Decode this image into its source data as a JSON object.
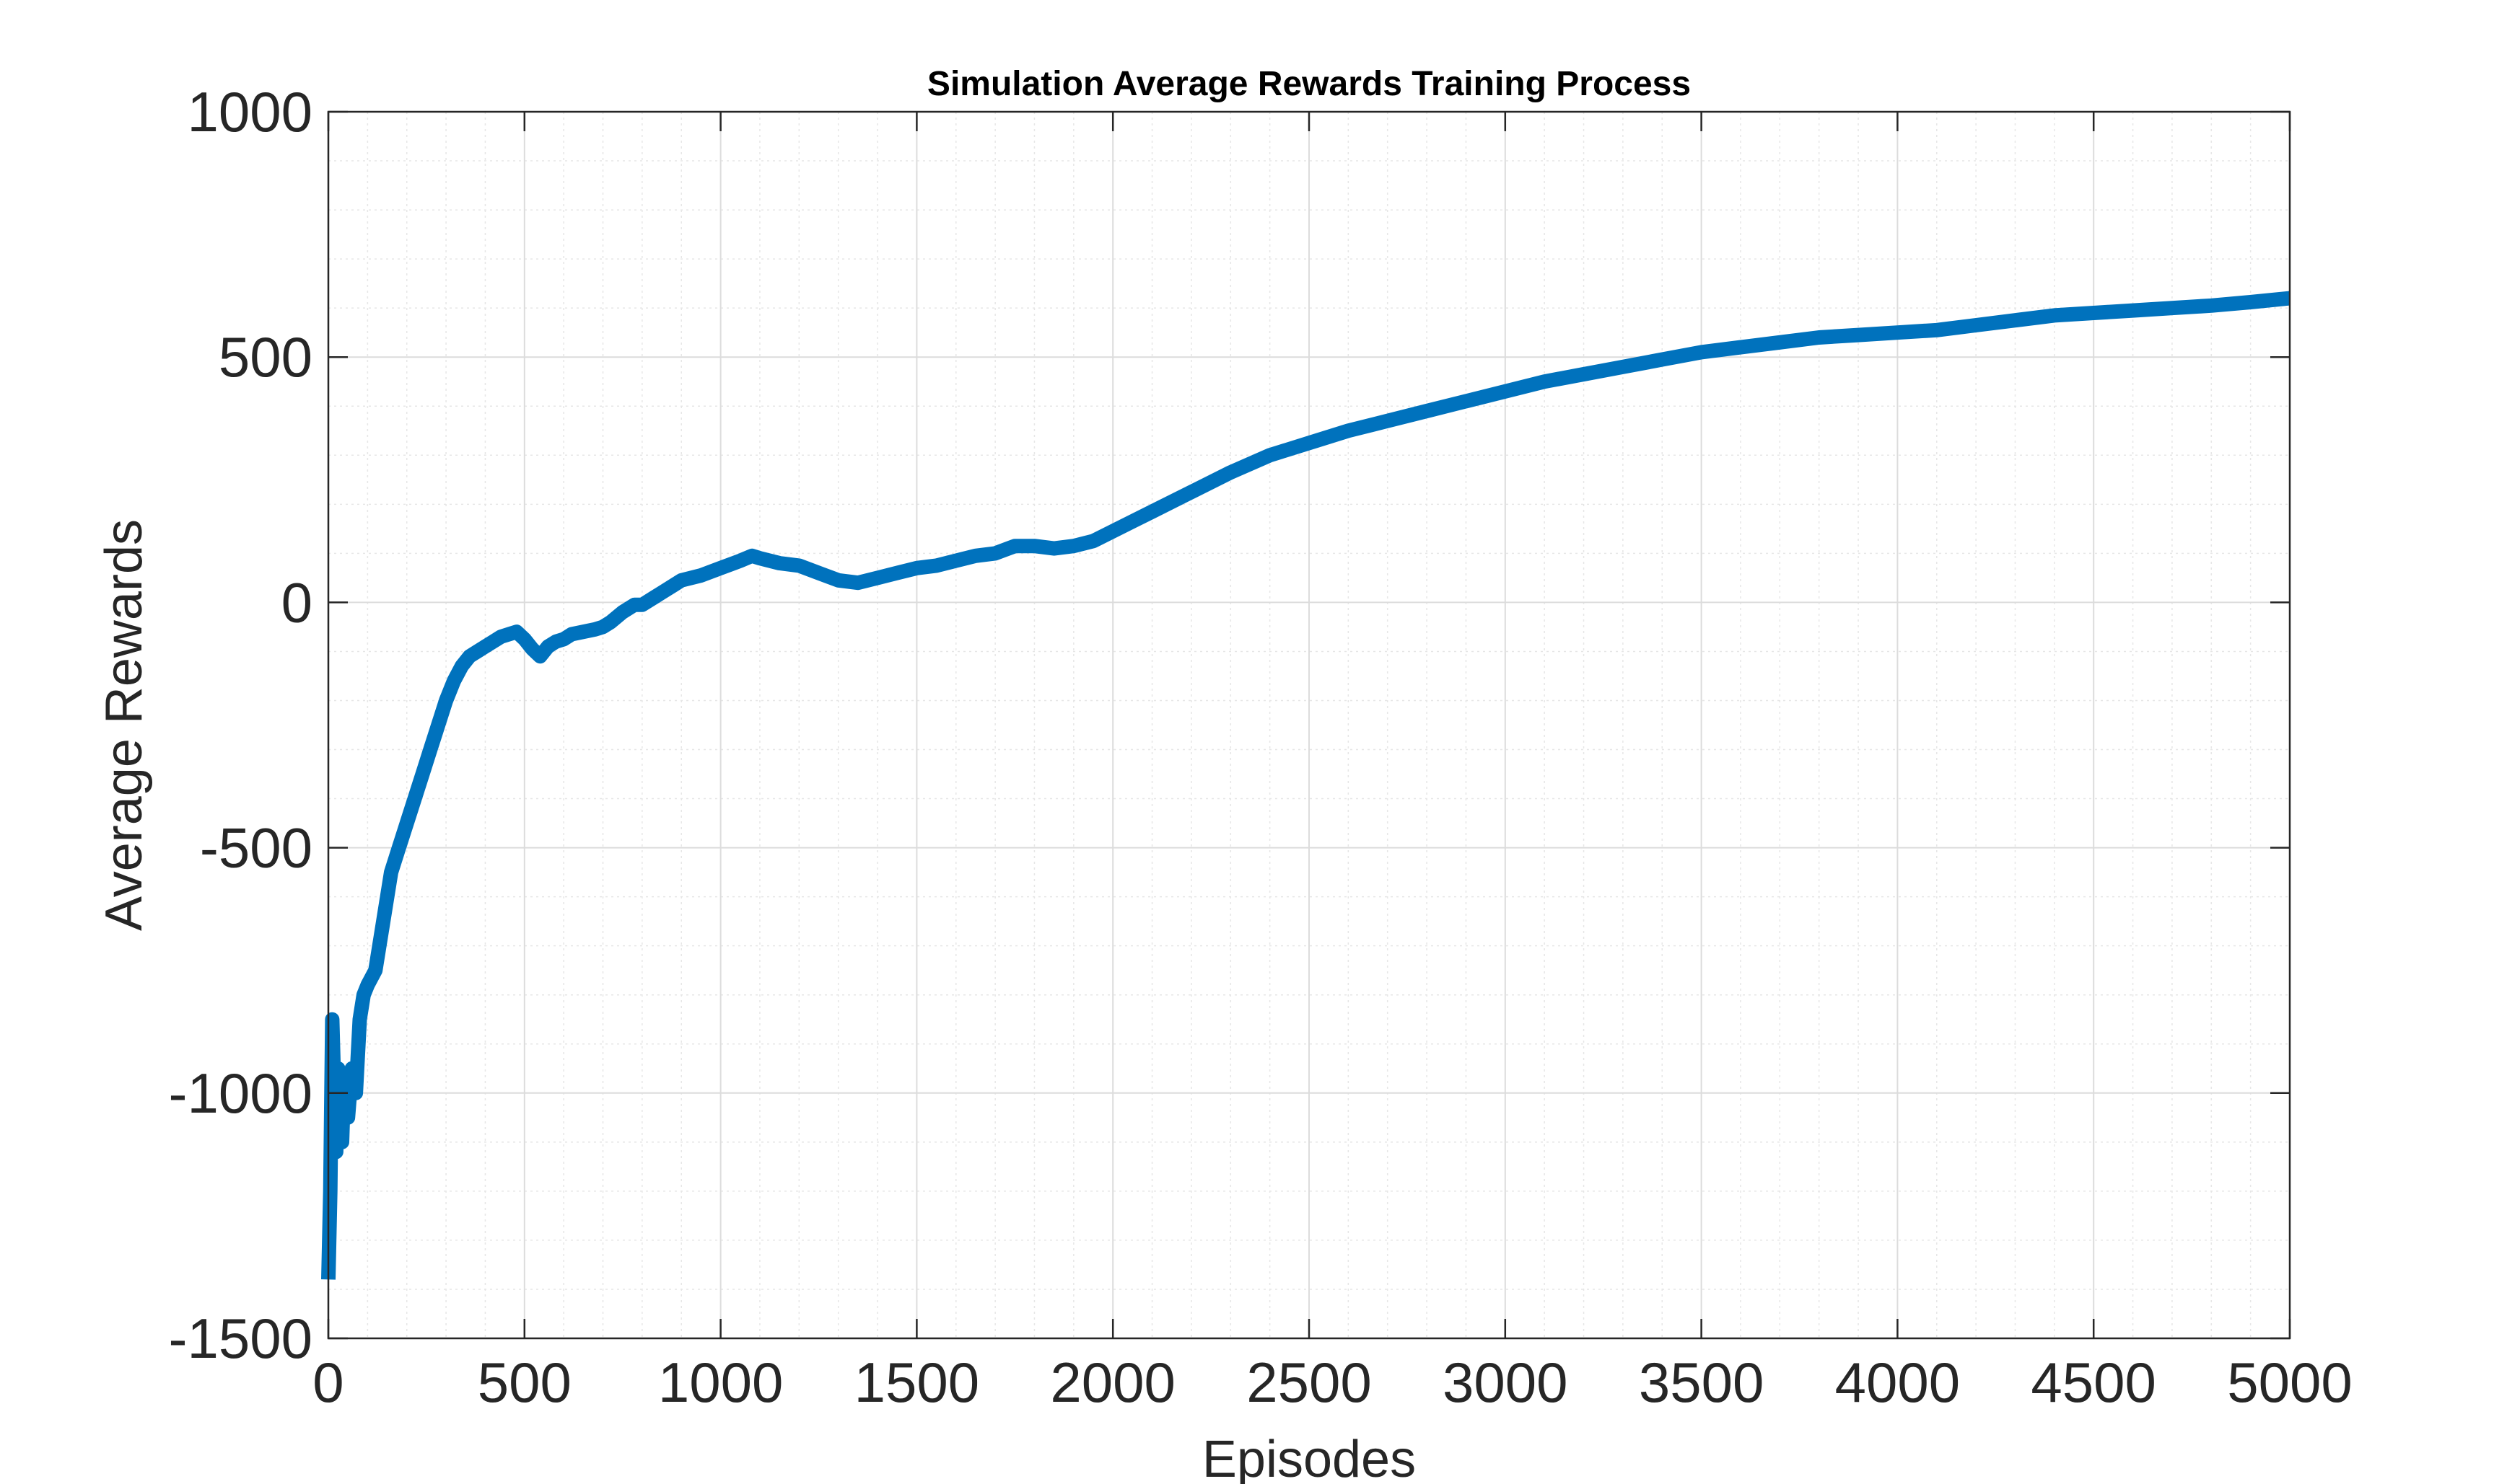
{
  "chart_data": {
    "type": "line",
    "title": "Simulation Average Rewards Training Process",
    "xlabel": "Episodes",
    "ylabel": "Average Rewards",
    "xlim": [
      0,
      5000
    ],
    "ylim": [
      -1500,
      1000
    ],
    "xticks": [
      0,
      500,
      1000,
      1500,
      2000,
      2500,
      3000,
      3500,
      4000,
      4500,
      5000
    ],
    "yticks": [
      -1500,
      -1000,
      -500,
      0,
      500,
      1000
    ],
    "grid": true,
    "minor_grid": true,
    "series": [
      {
        "color": "#0072BD",
        "x": [
          0,
          5,
          10,
          15,
          20,
          25,
          30,
          35,
          40,
          50,
          60,
          70,
          80,
          90,
          100,
          120,
          140,
          160,
          180,
          200,
          220,
          240,
          260,
          280,
          300,
          320,
          340,
          360,
          380,
          400,
          420,
          440,
          460,
          480,
          500,
          520,
          540,
          560,
          580,
          600,
          620,
          650,
          680,
          700,
          720,
          750,
          780,
          800,
          830,
          850,
          880,
          900,
          950,
          1000,
          1050,
          1080,
          1100,
          1150,
          1200,
          1250,
          1300,
          1350,
          1400,
          1450,
          1500,
          1550,
          1600,
          1650,
          1700,
          1750,
          1800,
          1850,
          1900,
          1950,
          2000,
          2050,
          2100,
          2200,
          2300,
          2400,
          2500,
          2600,
          2700,
          2800,
          2900,
          3000,
          3100,
          3200,
          3300,
          3400,
          3500,
          3600,
          3700,
          3800,
          3900,
          4000,
          4100,
          4200,
          4300,
          4400,
          4500,
          4600,
          4700,
          4800,
          4900,
          5000
        ],
        "y": [
          -1380,
          -1200,
          -850,
          -1000,
          -1120,
          -950,
          -1050,
          -1100,
          -980,
          -1050,
          -950,
          -1000,
          -850,
          -800,
          -780,
          -750,
          -650,
          -550,
          -500,
          -450,
          -400,
          -350,
          -300,
          -250,
          -200,
          -160,
          -130,
          -110,
          -100,
          -90,
          -80,
          -70,
          -65,
          -60,
          -75,
          -95,
          -110,
          -90,
          -80,
          -75,
          -65,
          -60,
          -55,
          -50,
          -40,
          -20,
          -5,
          -5,
          10,
          20,
          35,
          45,
          55,
          70,
          85,
          95,
          90,
          80,
          75,
          60,
          45,
          40,
          50,
          60,
          70,
          75,
          85,
          95,
          100,
          115,
          115,
          110,
          115,
          125,
          145,
          165,
          185,
          225,
          265,
          300,
          325,
          350,
          370,
          390,
          410,
          430,
          450,
          465,
          480,
          495,
          510,
          520,
          530,
          540,
          545,
          550,
          555,
          565,
          575,
          585,
          590,
          595,
          600,
          605,
          612,
          620
        ]
      }
    ]
  }
}
